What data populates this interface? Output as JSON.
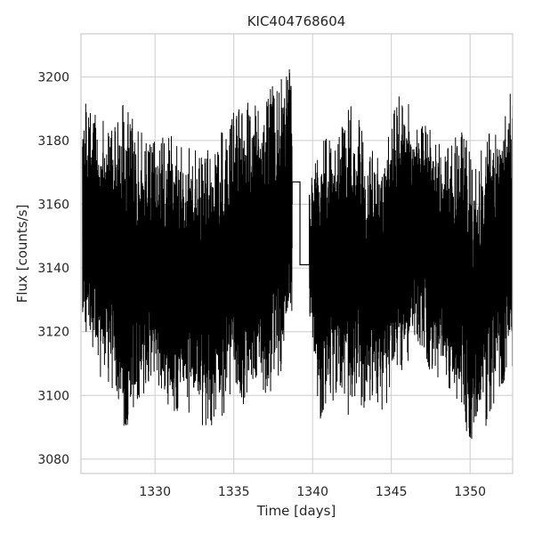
{
  "chart_data": {
    "type": "line",
    "title": "KIC404768604",
    "xlabel": "Time [days]",
    "ylabel": "Flux [counts/s]",
    "xlim": [
      1325.3,
      1352.7
    ],
    "ylim": [
      3075.5,
      3213.5
    ],
    "x_ticks": [
      1330,
      1335,
      1340,
      1345,
      1350
    ],
    "y_ticks": [
      3080,
      3100,
      3120,
      3140,
      3160,
      3180,
      3200
    ],
    "grid": true,
    "line_color": "#000000",
    "series": [
      {
        "envelope": {
          "x": [
            1325.4,
            1326.5,
            1327.5,
            1328.0,
            1329.0,
            1330.0,
            1331.0,
            1332.0,
            1333.0,
            1334.0,
            1335.0,
            1336.0,
            1337.0,
            1338.0,
            1338.7
          ],
          "y_max": [
            3195,
            3188,
            3186,
            3192,
            3183,
            3180,
            3182,
            3178,
            3177,
            3182,
            3190,
            3192,
            3195,
            3200,
            3207
          ],
          "y_min": [
            3117,
            3106,
            3100,
            3083,
            3098,
            3105,
            3093,
            3095,
            3088,
            3090,
            3102,
            3094,
            3098,
            3107,
            3127
          ]
        },
        "gap_segment": {
          "x": [
            1338.7,
            1338.7,
            1339.2,
            1339.2,
            1339.8,
            1339.8
          ],
          "y": [
            3160,
            3167,
            3167,
            3141,
            3141,
            3163
          ]
        }
      },
      {
        "envelope": {
          "x": [
            1339.8,
            1340.5,
            1341.5,
            1342.5,
            1343.5,
            1344.5,
            1345.5,
            1346.0,
            1346.5,
            1347.5,
            1348.5,
            1349.5,
            1350.2,
            1351.0,
            1352.0,
            1352.7
          ],
          "y_max": [
            3170,
            3183,
            3181,
            3195,
            3178,
            3180,
            3196,
            3193,
            3188,
            3183,
            3178,
            3186,
            3172,
            3180,
            3190,
            3197
          ],
          "y_min": [
            3118,
            3092,
            3100,
            3092,
            3096,
            3094,
            3107,
            3110,
            3116,
            3107,
            3104,
            3092,
            3082,
            3090,
            3103,
            3108
          ]
        }
      }
    ]
  }
}
